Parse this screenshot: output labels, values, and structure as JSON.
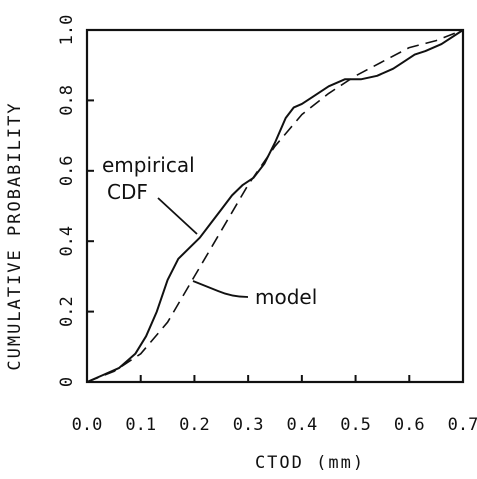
{
  "chart_data": {
    "type": "line",
    "xlabel": "CTOD (mm)",
    "ylabel": "CUMULATIVE PROBABILITY",
    "xlim": [
      0,
      0.7
    ],
    "ylim": [
      0,
      1.0
    ],
    "x_ticks": [
      "0.0",
      "0.1",
      "0.2",
      "0.3",
      "0.4",
      "0.5",
      "0.6",
      "0.7"
    ],
    "y_ticks": [
      "0",
      "0.2",
      "0.4",
      "0.6",
      "0.8",
      "1.0"
    ],
    "grid": false,
    "legend": "none",
    "annotations": [
      {
        "text": "empirical",
        "target_series": "empirical CDF"
      },
      {
        "text": "CDF",
        "target_series": "empirical CDF"
      },
      {
        "text": "model",
        "target_series": "model"
      }
    ],
    "series": [
      {
        "name": "empirical CDF",
        "style": "solid",
        "x": [
          0.0,
          0.03,
          0.06,
          0.09,
          0.11,
          0.13,
          0.15,
          0.17,
          0.19,
          0.21,
          0.23,
          0.25,
          0.27,
          0.29,
          0.31,
          0.33,
          0.35,
          0.37,
          0.385,
          0.4,
          0.42,
          0.45,
          0.48,
          0.51,
          0.54,
          0.57,
          0.59,
          0.61,
          0.63,
          0.66,
          0.7
        ],
        "y": [
          0.0,
          0.02,
          0.04,
          0.08,
          0.13,
          0.2,
          0.29,
          0.35,
          0.38,
          0.41,
          0.45,
          0.49,
          0.53,
          0.56,
          0.58,
          0.62,
          0.68,
          0.75,
          0.78,
          0.79,
          0.81,
          0.84,
          0.86,
          0.86,
          0.87,
          0.89,
          0.91,
          0.93,
          0.94,
          0.96,
          1.0
        ]
      },
      {
        "name": "model",
        "style": "dashed",
        "x": [
          0.0,
          0.05,
          0.1,
          0.15,
          0.2,
          0.25,
          0.3,
          0.35,
          0.4,
          0.45,
          0.5,
          0.55,
          0.6,
          0.65,
          0.7
        ],
        "y": [
          0.0,
          0.03,
          0.08,
          0.17,
          0.3,
          0.43,
          0.56,
          0.67,
          0.76,
          0.82,
          0.87,
          0.91,
          0.95,
          0.97,
          1.0
        ]
      }
    ]
  }
}
